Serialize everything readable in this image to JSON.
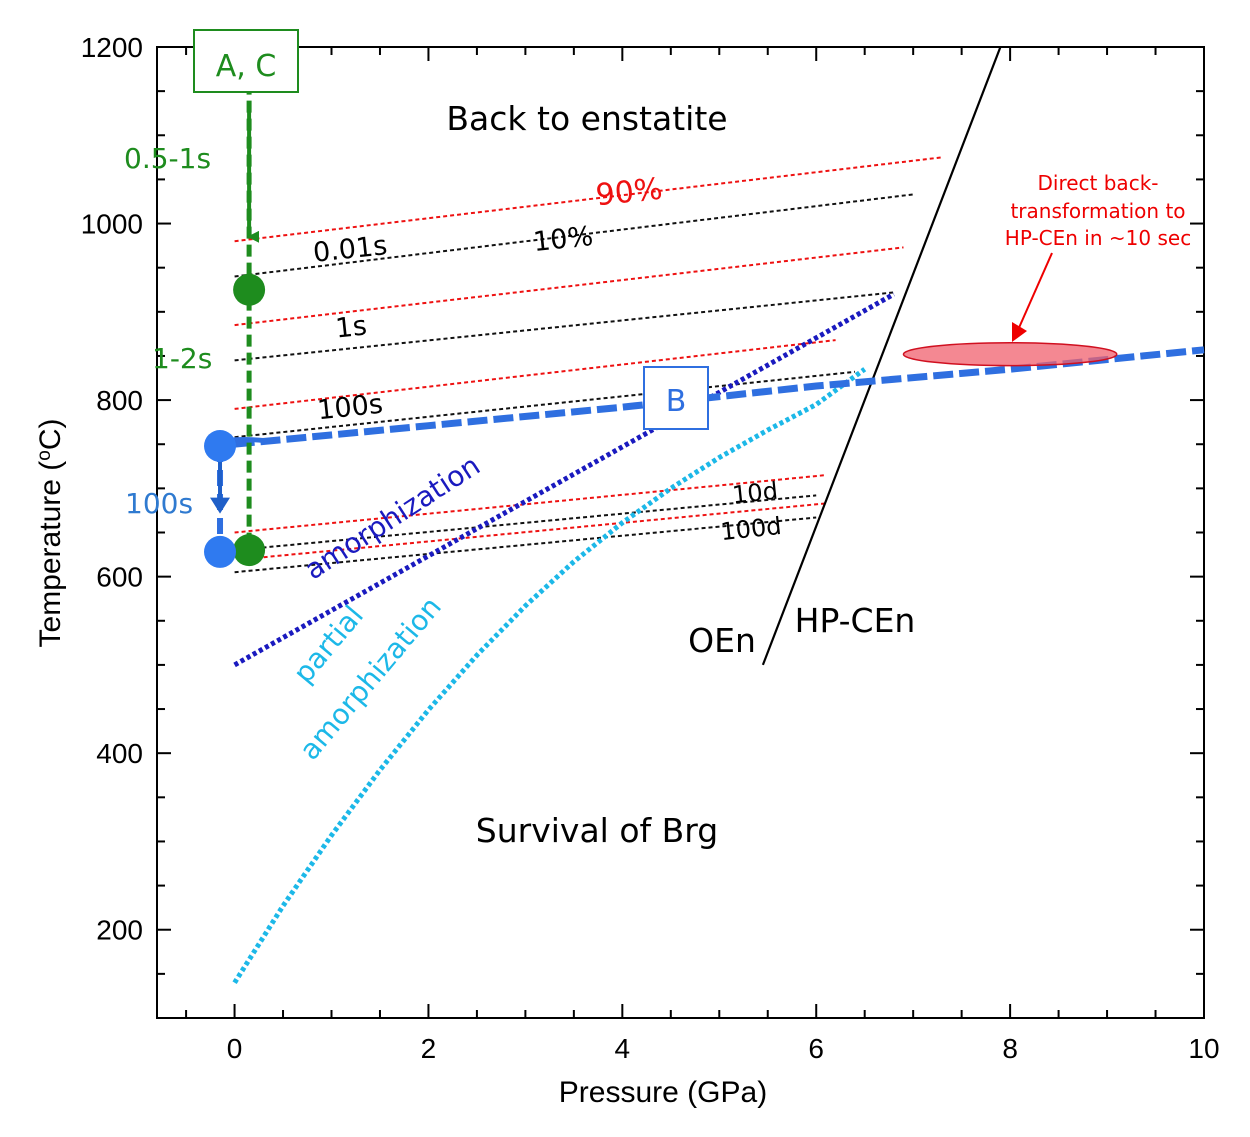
{
  "chart_data": {
    "type": "line",
    "xlabel": "Pressure (GPa)",
    "ylabel_main": "Temperature (",
    "ylabel_sup": "o",
    "ylabel_end": "C)",
    "xlim": [
      -0.8,
      10
    ],
    "ylim": [
      100,
      1200
    ],
    "x_ticks": [
      0,
      2,
      4,
      6,
      8,
      10
    ],
    "x_tick_labels": [
      "0",
      "2",
      "4",
      "6",
      "8",
      "10"
    ],
    "y_ticks": [
      200,
      400,
      600,
      800,
      1000,
      1200
    ],
    "y_tick_labels": [
      "200",
      "400",
      "600",
      "800",
      "1000",
      "1200"
    ],
    "colors": {
      "green": "#1e8c1e",
      "red_iso": "#ee1111",
      "black_iso": "#111111",
      "navy": "#1a1abf",
      "blue": "#2f6fe0",
      "cyan": "#1cb8e8",
      "ellipse": "#f0606e"
    },
    "region_labels": {
      "top": "Back to enstatite",
      "bottom": "Survival of Brg",
      "phase_left": "OEn",
      "phase_right": "HP-CEn"
    },
    "boundaries": [
      {
        "name": "OEn / HP-CEn phase boundary",
        "x": [
          5.45,
          7.9
        ],
        "y": [
          500,
          1200
        ]
      },
      {
        "name": "amorphization",
        "label": "amorphization",
        "x": [
          0,
          6.8
        ],
        "y": [
          500,
          920
        ]
      },
      {
        "name": "partial amorphization",
        "label_line1": "partial",
        "label_line2": "amorphization",
        "x": [
          0,
          0.5,
          1,
          1.5,
          2,
          2.5,
          3,
          3.5,
          4,
          4.5,
          5,
          5.5,
          6,
          6.5
        ],
        "y": [
          140,
          227,
          307,
          381,
          449,
          511,
          567,
          617,
          661,
          700,
          735,
          766,
          795,
          835
        ]
      },
      {
        "name": "direct back-transformation",
        "x": [
          0,
          2,
          4,
          6,
          8,
          10
        ],
        "y": [
          750,
          771,
          792,
          816,
          835,
          857
        ]
      }
    ],
    "isochrons": {
      "conversion_labels": {
        "high": "90%",
        "low": "10%"
      },
      "time_labels": [
        "0.01s",
        "1s",
        "100s",
        "10d",
        "100d"
      ],
      "series": [
        {
          "name": "90% 0.01s",
          "color": "red",
          "x": [
            0,
            7.3
          ],
          "y": [
            980,
            1075
          ]
        },
        {
          "name": "10% 0.01s",
          "color": "black",
          "x": [
            0,
            7
          ],
          "y": [
            940,
            1033
          ]
        },
        {
          "name": "90% 1s",
          "color": "red",
          "x": [
            0,
            6.9
          ],
          "y": [
            885,
            973
          ]
        },
        {
          "name": "10% 1s",
          "color": "black",
          "x": [
            0,
            6.8
          ],
          "y": [
            845,
            922
          ]
        },
        {
          "name": "90% 100s",
          "color": "red",
          "x": [
            0,
            6.2
          ],
          "y": [
            790,
            868
          ]
        },
        {
          "name": "10% 100s",
          "color": "black",
          "x": [
            0,
            6.4
          ],
          "y": [
            758,
            832
          ]
        },
        {
          "name": "90% 10d",
          "color": "red",
          "x": [
            0,
            6.1
          ],
          "y": [
            650,
            715
          ]
        },
        {
          "name": "10% 10d",
          "color": "black",
          "x": [
            0,
            6
          ],
          "y": [
            630,
            692
          ]
        },
        {
          "name": "90% 100d",
          "color": "red",
          "x": [
            0.3,
            6.1
          ],
          "y": [
            622,
            683
          ]
        },
        {
          "name": "10% 100d",
          "color": "black",
          "x": [
            0,
            6
          ],
          "y": [
            605,
            667
          ]
        }
      ]
    },
    "paths": [
      {
        "name": "A, C",
        "label": "A, C",
        "x": [
          0.15,
          0.15
        ],
        "y": [
          1180,
          630
        ],
        "segment_labels": [
          "0.5-1s",
          "1-2s"
        ],
        "points": [
          {
            "x": 0.15,
            "y": 925
          },
          {
            "x": 0.15,
            "y": 630
          }
        ]
      },
      {
        "name": "B",
        "label": "B",
        "x": [
          -0.15,
          -0.15
        ],
        "y": [
          748,
          628
        ],
        "segment_labels": [
          "100s"
        ],
        "points": [
          {
            "x": -0.15,
            "y": 748
          },
          {
            "x": -0.15,
            "y": 628
          }
        ]
      }
    ],
    "annotation": {
      "lines": [
        "Direct back-",
        "transformation to",
        "HP-CEn in ~10 sec"
      ],
      "ellipse_center": {
        "x": 8.0,
        "y": 852
      },
      "ellipse_half_width_gpa": 1.1,
      "ellipse_half_height_c": 13
    }
  }
}
